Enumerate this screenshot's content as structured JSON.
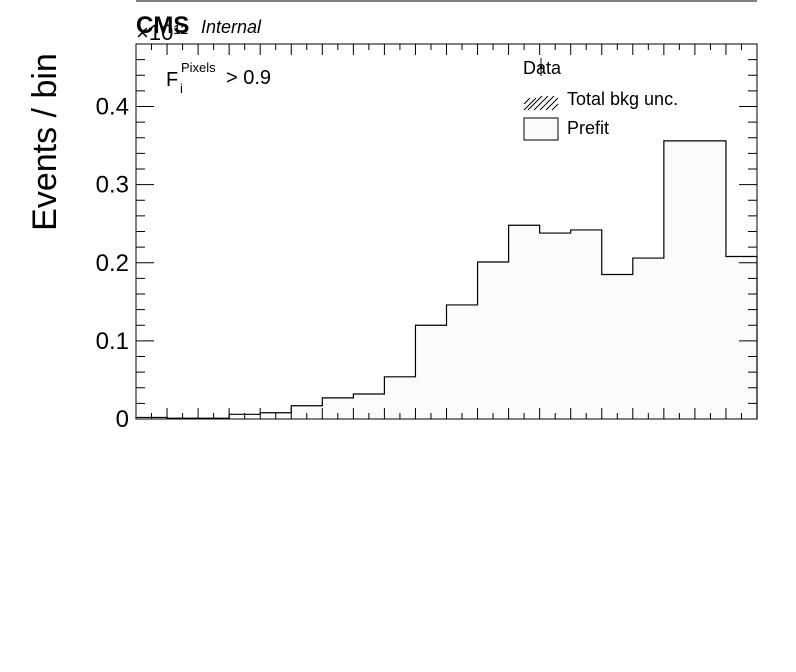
{
  "chart_data": {
    "type": "bar",
    "histogram": true,
    "title": "",
    "xlabel": "",
    "ylabel": "Events / bin",
    "y_scale_label": "×10¹²",
    "ylim": [
      0,
      0.48
    ],
    "yticks": [
      0,
      0.1,
      0.2,
      0.3,
      0.4
    ],
    "ytick_labels": [
      "0",
      "0.1",
      "0.2",
      "0.3",
      "0.4"
    ],
    "grid": false,
    "legend_position": "top-right",
    "experiment_label": "CMS",
    "status_label": "Internal",
    "cut_label": {
      "base": "F",
      "sub": "i",
      "sup": "Pixels",
      "rest": " > 0.9"
    },
    "legend": [
      {
        "label": "Data",
        "marker": "point"
      },
      {
        "label": "Total bkg unc.",
        "marker": "hatched-box"
      },
      {
        "label": "Prefit",
        "marker": "open-box"
      }
    ],
    "bins": 20,
    "series": [
      {
        "name": "Prefit",
        "values": [
          0.002,
          0.001,
          0.001,
          0.006,
          0.008,
          0.017,
          0.027,
          0.032,
          0.054,
          0.12,
          0.146,
          0.201,
          0.248,
          0.238,
          0.242,
          0.185,
          0.206,
          0.356,
          0.356,
          0.208
        ]
      }
    ],
    "colors": {
      "fill": "#fbfbfb",
      "line": "#000000"
    }
  }
}
